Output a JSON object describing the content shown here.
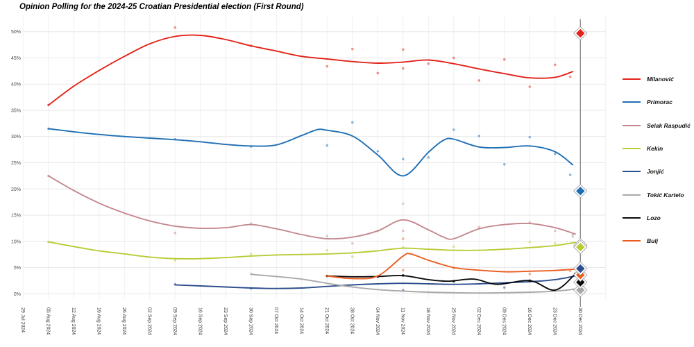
{
  "title": "Opinion Polling for the 2024-25 Croatian Presidential election (First Round)",
  "chart_data": {
    "type": "line",
    "title": "Opinion Polling for the 2024-25 Croatian Presidential election (First Round)",
    "xlabel": "",
    "ylabel": "",
    "ylim": [
      0,
      50
    ],
    "grid": true,
    "legend_position": "right",
    "y_ticks": [
      0,
      5,
      10,
      15,
      20,
      25,
      30,
      35,
      40,
      45,
      50
    ],
    "y_tick_suffix": "%",
    "x_tick_labels": [
      "29 Jul 2024",
      "05 Aug 2024",
      "12 Aug 2024",
      "19 Aug 2024",
      "26 Aug 2024",
      "02 Sep 2024",
      "09 Sep 2024",
      "16 Sep 2024",
      "23 Sep 2024",
      "30 Sep 2024",
      "07 Oct 2024",
      "14 Oct 2024",
      "21 Oct 2024",
      "28 Oct 2024",
      "04 Nov 2024",
      "11 Nov 2024",
      "18 Nov 2024",
      "25 Nov 2024",
      "02 Dec 2024",
      "09 Dec 2024",
      "16 Dec 2024",
      "23 Dec 2024",
      "30 Dec 2024"
    ],
    "election_marker": {
      "x_label": "30 Dec 2024",
      "week": 22
    },
    "grid_weeks": 24,
    "results_draw_order": [
      "tokic-kartelo",
      "lozo",
      "bulj",
      "jonjic",
      "selak-raspudic",
      "kekin",
      "primorac",
      "milanovic"
    ],
    "series": [
      {
        "slug": "milanovic",
        "name": "Milanović",
        "color": "#e32219",
        "result": 49.7,
        "trend": [
          [
            1,
            36.0
          ],
          [
            2,
            39.6
          ],
          [
            3,
            42.6
          ],
          [
            4,
            45.3
          ],
          [
            5,
            47.7
          ],
          [
            6,
            49.1
          ],
          [
            7,
            49.3
          ],
          [
            8,
            48.5
          ],
          [
            9,
            47.3
          ],
          [
            10,
            46.3
          ],
          [
            11,
            45.3
          ],
          [
            12,
            44.8
          ],
          [
            13,
            44.3
          ],
          [
            14,
            44.0
          ],
          [
            15,
            44.2
          ],
          [
            16,
            44.6
          ],
          [
            17,
            43.9
          ],
          [
            18,
            42.9
          ],
          [
            19,
            42.0
          ],
          [
            20,
            41.2
          ],
          [
            21,
            41.3
          ],
          [
            21.7,
            42.4
          ]
        ],
        "polls": [
          [
            1,
            36.0
          ],
          [
            6,
            50.8
          ],
          [
            9,
            47.3
          ],
          [
            12,
            43.4
          ],
          [
            13,
            46.7
          ],
          [
            14,
            42.1
          ],
          [
            15,
            46.6
          ],
          [
            15,
            43.0
          ],
          [
            16,
            43.9
          ],
          [
            17,
            45.0
          ],
          [
            18,
            40.7
          ],
          [
            19,
            44.7
          ],
          [
            20,
            39.5
          ],
          [
            21,
            43.7
          ],
          [
            21.6,
            41.4
          ]
        ]
      },
      {
        "slug": "primorac",
        "name": "Primorac",
        "color": "#1e6eb5",
        "result": 19.6,
        "trend": [
          [
            1,
            31.5
          ],
          [
            2,
            30.9
          ],
          [
            3,
            30.4
          ],
          [
            4,
            30.0
          ],
          [
            5,
            29.7
          ],
          [
            6,
            29.4
          ],
          [
            7,
            29.0
          ],
          [
            8,
            28.5
          ],
          [
            9,
            28.2
          ],
          [
            10,
            28.4
          ],
          [
            11,
            30.2
          ],
          [
            11.6,
            31.3
          ],
          [
            12,
            31.2
          ],
          [
            13,
            30.1
          ],
          [
            14,
            26.5
          ],
          [
            15,
            22.5
          ],
          [
            16,
            27.0
          ],
          [
            16.6,
            29.3
          ],
          [
            17,
            29.5
          ],
          [
            18,
            28.0
          ],
          [
            19,
            27.9
          ],
          [
            20,
            28.2
          ],
          [
            21,
            27.1
          ],
          [
            21.7,
            24.6
          ]
        ],
        "polls": [
          [
            1,
            31.5
          ],
          [
            6,
            29.5
          ],
          [
            9,
            28.1
          ],
          [
            12,
            28.3
          ],
          [
            13,
            32.7
          ],
          [
            14,
            27.2
          ],
          [
            15,
            25.7
          ],
          [
            16,
            26.0
          ],
          [
            17,
            31.3
          ],
          [
            18,
            30.1
          ],
          [
            19,
            24.7
          ],
          [
            20,
            29.9
          ],
          [
            21,
            26.7
          ],
          [
            21.6,
            22.7
          ]
        ]
      },
      {
        "slug": "selak-raspudic",
        "name": "Selak Raspudić",
        "color": "#c4898f",
        "result": 9.25,
        "trend": [
          [
            1,
            22.5
          ],
          [
            2,
            19.7
          ],
          [
            3,
            17.3
          ],
          [
            4,
            15.4
          ],
          [
            5,
            13.9
          ],
          [
            6,
            12.9
          ],
          [
            7,
            12.5
          ],
          [
            8,
            12.6
          ],
          [
            9,
            13.2
          ],
          [
            10,
            12.4
          ],
          [
            11,
            11.3
          ],
          [
            12,
            10.5
          ],
          [
            13,
            10.8
          ],
          [
            14,
            12.0
          ],
          [
            15,
            14.1
          ],
          [
            16,
            12.2
          ],
          [
            16.6,
            10.8
          ],
          [
            17,
            10.5
          ],
          [
            18,
            12.4
          ],
          [
            19,
            13.2
          ],
          [
            20,
            13.4
          ],
          [
            21,
            12.6
          ],
          [
            21.8,
            11.4
          ]
        ],
        "polls": [
          [
            1,
            22.5
          ],
          [
            6,
            11.6
          ],
          [
            9,
            13.4
          ],
          [
            13,
            9.6
          ],
          [
            14,
            12.0
          ],
          [
            15,
            12.0
          ],
          [
            18,
            12.7
          ],
          [
            20,
            13.6
          ],
          [
            21,
            12.0
          ],
          [
            21.7,
            11.3
          ]
        ]
      },
      {
        "slug": "kekin",
        "name": "Kekin",
        "color": "#b9cb35",
        "result": 8.9,
        "trend": [
          [
            1,
            9.9
          ],
          [
            2,
            9.0
          ],
          [
            3,
            8.2
          ],
          [
            4,
            7.6
          ],
          [
            5,
            7.0
          ],
          [
            6,
            6.7
          ],
          [
            7,
            6.7
          ],
          [
            8,
            6.9
          ],
          [
            9,
            7.2
          ],
          [
            10,
            7.4
          ],
          [
            11,
            7.5
          ],
          [
            12,
            7.6
          ],
          [
            13,
            7.8
          ],
          [
            14,
            8.2
          ],
          [
            15,
            8.7
          ],
          [
            16,
            8.5
          ],
          [
            17,
            8.3
          ],
          [
            18,
            8.3
          ],
          [
            19,
            8.5
          ],
          [
            20,
            8.8
          ],
          [
            21,
            9.2
          ],
          [
            21.8,
            9.8
          ]
        ],
        "polls": [
          [
            1,
            9.9
          ],
          [
            6,
            6.4
          ],
          [
            9,
            7.6
          ],
          [
            12,
            8.3
          ],
          [
            13,
            7.1
          ],
          [
            15,
            8.8
          ],
          [
            17,
            9.0
          ],
          [
            20,
            9.9
          ],
          [
            21,
            9.6
          ]
        ]
      },
      {
        "slug": "jonjic",
        "name": "Jonjić",
        "color": "#2c4d8e",
        "result": 4.8,
        "trend": [
          [
            6,
            1.7
          ],
          [
            7,
            1.5
          ],
          [
            8,
            1.3
          ],
          [
            9,
            1.1
          ],
          [
            10,
            1.0
          ],
          [
            11,
            1.1
          ],
          [
            12,
            1.4
          ],
          [
            13,
            1.7
          ],
          [
            14,
            1.9
          ],
          [
            15,
            2.0
          ],
          [
            16,
            1.9
          ],
          [
            17,
            1.8
          ],
          [
            18,
            1.9
          ],
          [
            19,
            2.1
          ],
          [
            20,
            2.3
          ],
          [
            21,
            2.7
          ],
          [
            21.8,
            3.4
          ]
        ],
        "polls": [
          [
            6,
            1.8
          ],
          [
            9,
            1.0
          ],
          [
            15,
            0.7
          ],
          [
            19,
            1.2
          ]
        ]
      },
      {
        "slug": "tokic-kartelo",
        "name": "Tokić Kartelo",
        "color": "#a9a9a9",
        "result": 0.7,
        "trend": [
          [
            9,
            3.7
          ],
          [
            10,
            3.3
          ],
          [
            11,
            2.8
          ],
          [
            12,
            2.0
          ],
          [
            13,
            1.3
          ],
          [
            14,
            0.8
          ],
          [
            15,
            0.5
          ],
          [
            16,
            0.3
          ],
          [
            17,
            0.2
          ],
          [
            18,
            0.15
          ],
          [
            19,
            0.2
          ],
          [
            20,
            0.3
          ],
          [
            21,
            0.5
          ],
          [
            21.8,
            0.9
          ]
        ],
        "polls": [
          [
            9,
            3.8
          ],
          [
            12,
            11.0
          ],
          [
            15,
            17.2
          ],
          [
            21.7,
            10.9
          ]
        ]
      },
      {
        "slug": "lozo",
        "name": "Lozo",
        "color": "#0a0a0a",
        "result": 2.2,
        "poll_opacity": 0.9,
        "trend": [
          [
            12,
            3.4
          ],
          [
            13,
            3.25
          ],
          [
            14,
            3.3
          ],
          [
            15,
            3.45
          ],
          [
            16,
            2.7
          ],
          [
            16.8,
            2.4
          ],
          [
            17.8,
            2.8
          ],
          [
            18.7,
            1.8
          ],
          [
            20,
            2.5
          ],
          [
            21,
            0.7
          ],
          [
            21.8,
            3.8
          ]
        ],
        "polls": [
          [
            12,
            3.4
          ],
          [
            14,
            3.3
          ],
          [
            15,
            3.5
          ],
          [
            17,
            2.4
          ],
          [
            20,
            2.5
          ],
          [
            21.8,
            3.8
          ]
        ]
      },
      {
        "slug": "bulj",
        "name": "Bulj",
        "color": "#e95d1f",
        "result": 3.6,
        "trend": [
          [
            12,
            3.4
          ],
          [
            13,
            2.9
          ],
          [
            14,
            3.4
          ],
          [
            15,
            7.2
          ],
          [
            15.3,
            7.6
          ],
          [
            16,
            6.4
          ],
          [
            17,
            5.0
          ],
          [
            18,
            4.5
          ],
          [
            19,
            4.2
          ],
          [
            20,
            4.3
          ],
          [
            21,
            4.45
          ],
          [
            21.8,
            4.7
          ]
        ],
        "polls": [
          [
            12,
            3.4
          ],
          [
            15,
            10.5
          ],
          [
            15,
            4.5
          ],
          [
            17,
            4.9
          ],
          [
            20,
            3.8
          ],
          [
            21.6,
            4.4
          ]
        ]
      }
    ]
  }
}
